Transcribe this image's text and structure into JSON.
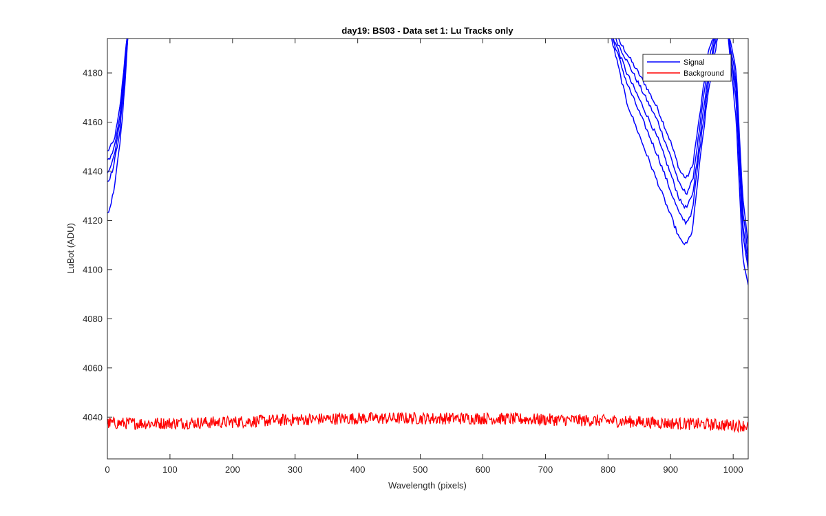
{
  "chart_data": {
    "type": "line",
    "title": "day19: BS03 - Data set 1: Lu Tracks only",
    "xlabel": "Wavelength (pixels)",
    "ylabel": "LuBot (ADU)",
    "xlim": [
      0,
      1024
    ],
    "ylim": [
      4023,
      4194
    ],
    "xticks": [
      0,
      100,
      200,
      300,
      400,
      500,
      600,
      700,
      800,
      900,
      1000
    ],
    "yticks": [
      4040,
      4060,
      4080,
      4100,
      4120,
      4140,
      4160,
      4180
    ],
    "grid": false,
    "legend": {
      "location": "top-right",
      "entries": [
        "Signal",
        "Background"
      ]
    },
    "colors": {
      "signal": "#0000ff",
      "background": "#ff0000",
      "axes": "#262626"
    },
    "series": [
      {
        "name": "Signal",
        "color": "#0000ff",
        "traces": [
          {
            "left": {
              "x": [
                0,
                5,
                10,
                15,
                20,
                25,
                30,
                34
              ],
              "y": [
                4148,
                4150,
                4152,
                4158,
                4166,
                4178,
                4192,
                4200
              ]
            },
            "right": {
              "x": [
                800,
                830,
                860,
                880,
                900,
                915,
                925,
                935,
                945,
                960,
                975,
                990,
                1005,
                1015,
                1024
              ],
              "y": [
                4200,
                4188,
                4175,
                4165,
                4152,
                4140,
                4137,
                4142,
                4160,
                4188,
                4200,
                4200,
                4180,
                4130,
                4110
              ]
            }
          },
          {
            "left": {
              "x": [
                0,
                5,
                10,
                15,
                20,
                25,
                30,
                34
              ],
              "y": [
                4144,
                4146,
                4149,
                4155,
                4163,
                4175,
                4190,
                4200
              ]
            },
            "right": {
              "x": [
                800,
                830,
                860,
                880,
                900,
                915,
                925,
                935,
                945,
                960,
                975,
                990,
                1005,
                1015,
                1024
              ],
              "y": [
                4200,
                4185,
                4170,
                4160,
                4146,
                4134,
                4131,
                4136,
                4155,
                4184,
                4200,
                4200,
                4176,
                4125,
                4105
              ]
            }
          },
          {
            "left": {
              "x": [
                0,
                5,
                10,
                15,
                20,
                25,
                30,
                34
              ],
              "y": [
                4140,
                4142,
                4146,
                4152,
                4160,
                4172,
                4188,
                4200
              ]
            },
            "right": {
              "x": [
                800,
                830,
                860,
                880,
                900,
                915,
                925,
                935,
                945,
                960,
                975,
                990,
                1005,
                1015,
                1024
              ],
              "y": [
                4200,
                4180,
                4164,
                4153,
                4139,
                4128,
                4125,
                4130,
                4150,
                4180,
                4200,
                4200,
                4172,
                4120,
                4102
              ]
            }
          },
          {
            "left": {
              "x": [
                0,
                5,
                10,
                15,
                20,
                25,
                30,
                34
              ],
              "y": [
                4136,
                4138,
                4142,
                4149,
                4157,
                4170,
                4186,
                4200
              ]
            },
            "right": {
              "x": [
                800,
                830,
                860,
                880,
                900,
                915,
                925,
                935,
                945,
                960,
                975,
                990,
                1005,
                1015,
                1024
              ],
              "y": [
                4200,
                4176,
                4158,
                4146,
                4132,
                4122,
                4119,
                4124,
                4146,
                4176,
                4198,
                4200,
                4168,
                4115,
                4100
              ]
            }
          },
          {
            "left": {
              "x": [
                0,
                5,
                10,
                15,
                20,
                25,
                30,
                34
              ],
              "y": [
                4123,
                4126,
                4132,
                4141,
                4151,
                4165,
                4183,
                4200
              ]
            },
            "right": {
              "x": [
                800,
                830,
                860,
                880,
                900,
                915,
                925,
                935,
                945,
                960,
                975,
                990,
                1005,
                1015,
                1024
              ],
              "y": [
                4200,
                4168,
                4148,
                4135,
                4122,
                4112,
                4110,
                4116,
                4140,
                4172,
                4194,
                4200,
                4160,
                4105,
                4094
              ]
            }
          }
        ]
      },
      {
        "name": "Background",
        "color": "#ff0000",
        "x": [
          0,
          100,
          200,
          300,
          400,
          500,
          600,
          700,
          800,
          900,
          1024
        ],
        "y": [
          4037.5,
          4037.5,
          4038,
          4039,
          4039.5,
          4039.5,
          4039.5,
          4039,
          4038.5,
          4037.5,
          4036.5
        ],
        "noise_amplitude": 2.5
      }
    ]
  }
}
